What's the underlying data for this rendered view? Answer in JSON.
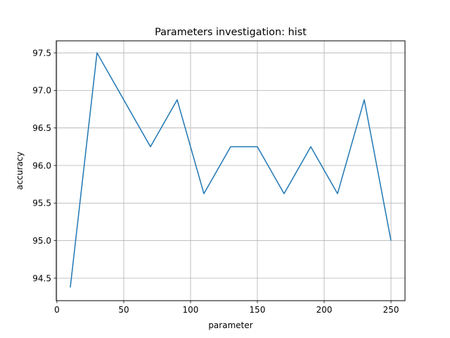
{
  "chart_data": {
    "type": "line",
    "title": "Parameters investigation: hist",
    "xlabel": "parameter",
    "ylabel": "accuracy",
    "xlim": [
      -0.5,
      260.5
    ],
    "ylim": [
      94.2,
      97.66
    ],
    "grid": true,
    "x_ticks": [
      0,
      50,
      100,
      150,
      200,
      250
    ],
    "x_tick_labels": [
      "0",
      "50",
      "100",
      "150",
      "200",
      "250"
    ],
    "y_ticks": [
      94.5,
      95.0,
      95.5,
      96.0,
      96.5,
      97.0,
      97.5
    ],
    "y_tick_labels": [
      "94.5",
      "95.0",
      "95.5",
      "96.0",
      "96.5",
      "97.0",
      "97.5"
    ],
    "series": [
      {
        "color": "#1f77b4",
        "x": [
          10,
          30,
          50,
          70,
          90,
          110,
          130,
          150,
          170,
          190,
          210,
          230,
          250
        ],
        "y": [
          94.375,
          97.5,
          96.875,
          96.25,
          96.875,
          95.625,
          96.25,
          96.25,
          95.625,
          96.25,
          95.625,
          96.875,
          95.0
        ]
      }
    ]
  }
}
